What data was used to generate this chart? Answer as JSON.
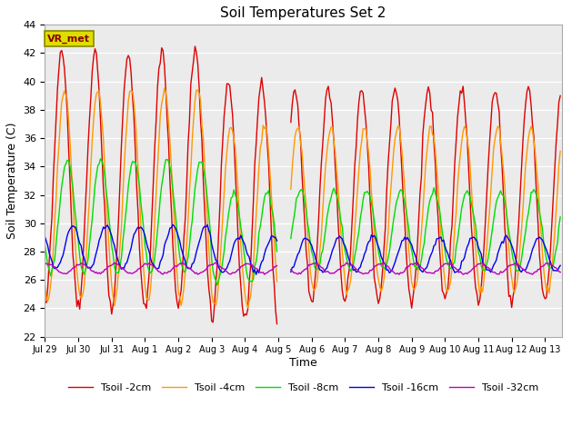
{
  "title": "Soil Temperatures Set 2",
  "xlabel": "Time",
  "ylabel": "Soil Temperature (C)",
  "ylim": [
    22,
    44
  ],
  "yticks": [
    22,
    24,
    26,
    28,
    30,
    32,
    34,
    36,
    38,
    40,
    42,
    44
  ],
  "plot_bg_color": "#ebebeb",
  "fig_bg_color": "#ffffff",
  "annotation_text": "VR_met",
  "annotation_box_facecolor": "#dddd00",
  "annotation_box_edgecolor": "#888800",
  "annotation_text_color": "#880000",
  "colors": {
    "2cm": "#dd0000",
    "4cm": "#ff9900",
    "8cm": "#00dd00",
    "16cm": "#0000ee",
    "32cm": "#bb00bb"
  },
  "legend_labels": [
    "Tsoil -2cm",
    "Tsoil -4cm",
    "Tsoil -8cm",
    "Tsoil -16cm",
    "Tsoil -32cm"
  ],
  "xtick_labels": [
    "Jul 29",
    "Jul 30",
    "Jul 31",
    "Aug 1",
    "Aug 2",
    "Aug 3",
    "Aug 4",
    "Aug 5",
    "Aug 6",
    "Aug 7",
    "Aug 8",
    "Aug 9",
    "Aug 10",
    "Aug 11",
    "Aug 12",
    "Aug 13"
  ],
  "xlim": [
    0,
    15.5
  ],
  "grid_color": "#ffffff",
  "line_width": 1.0,
  "figsize": [
    6.4,
    4.8
  ],
  "dpi": 100
}
